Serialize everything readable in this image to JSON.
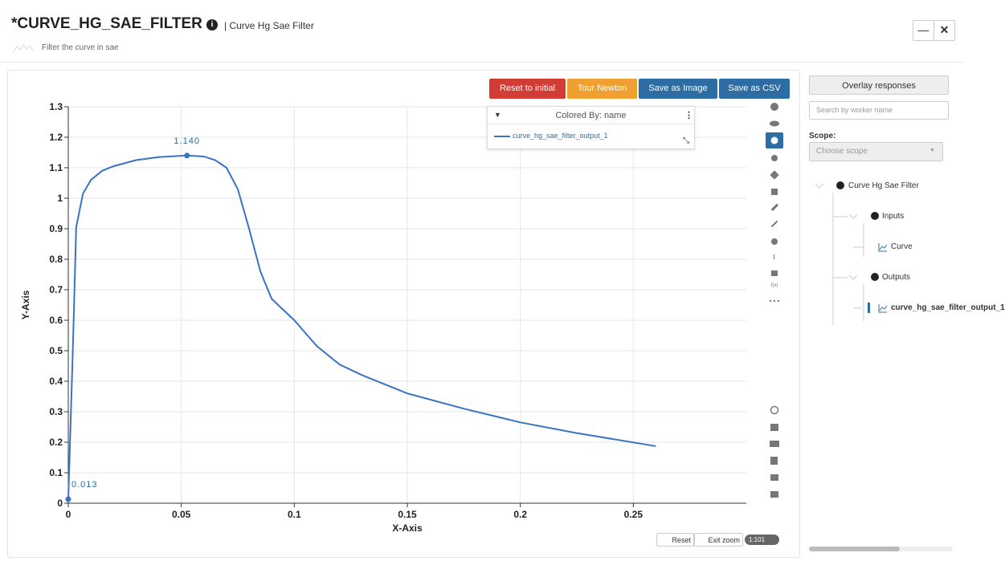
{
  "header": {
    "title": "*CURVE_HG_SAE_FILTER",
    "subtitle": "| Curve Hg Sae Filter",
    "description": "Filter the curve in sae"
  },
  "toolbar": {
    "buttons": [
      "Reset to initial",
      "Tour Newton",
      "Save as Image",
      "Save as CSV"
    ]
  },
  "legend_panel": {
    "title": "Colored By: name"
  },
  "side_tools": {
    "function_label": "f(x)"
  },
  "zoom_controls": {
    "reset": "Reset",
    "exit": "Exit zoom",
    "ratio": "1:101"
  },
  "sidebar": {
    "overlay_button": "Overlay responses",
    "search_placeholder": "Search by worker name",
    "scope_label": "Scope:",
    "scope_placeholder": "Choose scope",
    "tree": [
      "Curve Hg Sae Filter",
      "Inputs",
      "Curve",
      "Outputs",
      "curve_hg_sae_filter_output_1"
    ]
  },
  "chart_data": {
    "type": "line",
    "x_label": "X-Axis",
    "y_label": "Y-Axis",
    "x": [
      0,
      0.002,
      0.0035,
      0.0065,
      0.01,
      0.015,
      0.02,
      0.03,
      0.04,
      0.0525,
      0.06,
      0.065,
      0.07,
      0.075,
      0.08,
      0.085,
      0.09,
      0.1,
      0.11,
      0.12,
      0.13,
      0.15,
      0.175,
      0.2,
      0.225,
      0.26
    ],
    "series": [
      {
        "name": "curve_hg_sae_filter_output_1",
        "color": "#3a72c4",
        "values": [
          0.013,
          0.5,
          0.905,
          1.015,
          1.06,
          1.09,
          1.105,
          1.125,
          1.135,
          1.14,
          1.137,
          1.125,
          1.1,
          1.03,
          0.9,
          0.76,
          0.67,
          0.6,
          0.515,
          0.455,
          0.42,
          0.36,
          0.31,
          0.265,
          0.23,
          0.187
        ]
      }
    ],
    "annotations": [
      {
        "x": 0.0525,
        "y": 1.14,
        "label": "1.140"
      },
      {
        "x": 0,
        "y": 0.013,
        "label": "0.013"
      }
    ],
    "xlim": [
      0,
      0.3
    ],
    "ylim": [
      0,
      1.3
    ],
    "xticks": [
      0,
      0.05,
      0.1,
      0.15,
      0.2,
      0.25
    ],
    "yticks": [
      0,
      0.1,
      0.2,
      0.3,
      0.4,
      0.5,
      0.6,
      0.7,
      0.8,
      0.9,
      1,
      1.1,
      1.2,
      1.3
    ],
    "grid": true
  }
}
